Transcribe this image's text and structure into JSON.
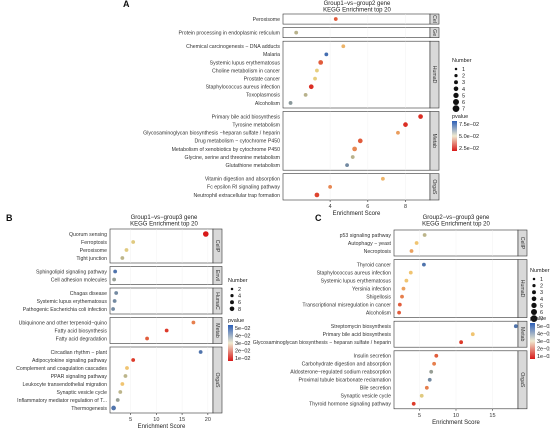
{
  "figure": {
    "panels": [
      {
        "label": "A",
        "title_lines": [
          "Group1−vs−group2 gene",
          "KEGG Enrichment top 20"
        ],
        "xlabel": "Enrichment Score",
        "xticks": [
          4,
          6,
          8
        ],
        "xlim": [
          1.5,
          9.3
        ],
        "groups": [
          {
            "strip": "Cel",
            "terms": [
              "Peroxisome"
            ]
          },
          {
            "strip": "Ge",
            "terms": [
              "Protein processing in endoplasmic reticulum"
            ]
          },
          {
            "strip": "HumaD",
            "terms": [
              "Chemical carcinogenesis − DNA adducts",
              "Malaria",
              "Systemic lupus erythematosus",
              "Choline metabolism in cancer",
              "Prostate cancer",
              "Staphylococcus aureus infection",
              "Toxoplasmosis",
              "Alcoholism"
            ]
          },
          {
            "strip": "Metab",
            "terms": [
              "Primary bile acid biosynthesis",
              "Tyrosine metabolism",
              "Glycosaminoglycan biosynthesis −heparan sulfate / heparin",
              "Drug metabolism − cytochrome P450",
              "Metabolism of xenobiotics by cytochrome P450",
              "Glycine, serine and threonine metabolism",
              "Glutathione metabolism"
            ]
          },
          {
            "strip": "OrgaS",
            "terms": [
              "Vitamin digestion and absorption",
              "Fc epsilon RI signaling pathway",
              "Neutrophil extracellular trap formation"
            ]
          }
        ]
      },
      {
        "label": "B",
        "title_lines": [
          "Group1−vs−group3 gene",
          "KEGG Enrichment top 20"
        ],
        "xlabel": "Enrichment Score",
        "xticks": [
          5,
          10,
          15,
          20
        ],
        "xlim": [
          1,
          21
        ],
        "groups": [
          {
            "strip": "CellP",
            "terms": [
              "Quorum sensing",
              "Ferroptosis",
              "Peroxisome",
              "Tight junction"
            ]
          },
          {
            "strip": "Envil",
            "terms": [
              "Sphingolipid signaling pathway",
              "Cell adhesion molecules"
            ]
          },
          {
            "strip": "HumaC",
            "terms": [
              "Chagas disease",
              "Systemic lupus erythematosus",
              "Pathogenic Escherichia coli infection"
            ]
          },
          {
            "strip": "Metab",
            "terms": [
              "Ubiquinone and other terpenoid−quino",
              "Fatty acid biosynthesis",
              "Fatty acid degradation"
            ]
          },
          {
            "strip": "OrgaS",
            "terms": [
              "Circadian rhythm − plant",
              "Adipocytokine signaling pathway",
              "Complement and coagulation cascades",
              "PPAR signaling pathway",
              "Leukocyte transendothelial migration",
              "Synaptic vesicle cycle",
              "Inflammatory mediator regulation of T...",
              "Thermogenesis"
            ]
          }
        ]
      },
      {
        "label": "C",
        "title_lines": [
          "Group2−vs−group3 gene",
          "KEGG Enrichment top 20"
        ],
        "xlabel": "Enrichment Score",
        "xticks": [
          5,
          10,
          15
        ],
        "xlim": [
          1.5,
          18.5
        ],
        "groups": [
          {
            "strip": "CellP",
            "terms": [
              "p53 signaling pathway",
              "Autophagy − yeast",
              "Necroptosis"
            ]
          },
          {
            "strip": "HumaD",
            "terms": [
              "Thyroid cancer",
              "Staphylococcus aureus infection",
              "Systemic lupus erythematosus",
              "Yersinia infection",
              "Shigellosis",
              "Transcriptional misregulation in cancer",
              "Alcoholism"
            ]
          },
          {
            "strip": "Metab",
            "terms": [
              "Streptomycin biosynthesis",
              "Primary bile acid biosynthesis",
              "Glycosaminoglycan biosynthesis − heparan sulfate / heparin"
            ]
          },
          {
            "strip": "OrgaS",
            "terms": [
              "Insulin secretion",
              "Carbohydrate digestion and absorption",
              "Aldosterone−regulated sodium reabsorption",
              "Proximal tubule bicarbonate reclamation",
              "Bile secretion",
              "Synaptic vesicle cycle",
              "Thyroid hormone signaling pathway"
            ]
          }
        ]
      }
    ],
    "legends": {
      "A": {
        "number_title": "Number",
        "number_labels": [
          "1",
          "2",
          "3",
          "4",
          "5",
          "6",
          "7"
        ],
        "pvalue_title": "pvalue",
        "pvalue_labels": [
          "7.5e−02",
          "5.0e−02",
          "2.5e−02"
        ]
      },
      "B": {
        "number_title": "Number",
        "number_labels": [
          "2",
          "4",
          "6",
          "8"
        ],
        "pvalue_title": "pvalue",
        "pvalue_labels": [
          "5e−02",
          "4e−02",
          "3e−02",
          "2e−02",
          "1e−02"
        ]
      },
      "C": {
        "number_title": "Number",
        "number_labels": [
          "1",
          "2",
          "3",
          "4",
          "5",
          "6",
          "7"
        ],
        "pvalue_title": "pvalue",
        "pvalue_labels": [
          "5e−02",
          "4e−02",
          "3e−02",
          "2e−02",
          "1e−02"
        ]
      }
    }
  },
  "chart_data": [
    {
      "type": "scatter",
      "panel": "A",
      "title": "Group1−vs−group2 gene KEGG Enrichment top 20",
      "xlabel": "Enrichment Score",
      "xlim": [
        1.5,
        9.3
      ],
      "points": [
        {
          "term": "Peroxisome",
          "x": 4.3,
          "number": 2,
          "pvalue": 0.02
        },
        {
          "term": "Protein processing in endoplasmic reticulum",
          "x": 2.2,
          "number": 2,
          "pvalue": 0.06
        },
        {
          "term": "Chemical carcinogenesis − DNA adducts",
          "x": 4.7,
          "number": 2,
          "pvalue": 0.04
        },
        {
          "term": "Malaria",
          "x": 3.8,
          "number": 2,
          "pvalue": 0.085
        },
        {
          "term": "Systemic lupus erythematosus",
          "x": 3.5,
          "number": 3,
          "pvalue": 0.02
        },
        {
          "term": "Choline metabolism in cancer",
          "x": 3.3,
          "number": 2,
          "pvalue": 0.05
        },
        {
          "term": "Prostate cancer",
          "x": 3.2,
          "number": 2,
          "pvalue": 0.05
        },
        {
          "term": "Staphylococcus aureus infection",
          "x": 3.0,
          "number": 3,
          "pvalue": 0.01
        },
        {
          "term": "Toxoplasmosis",
          "x": 2.7,
          "number": 2,
          "pvalue": 0.06
        },
        {
          "term": "Alcoholism",
          "x": 1.9,
          "number": 2,
          "pvalue": 0.07
        },
        {
          "term": "Primary bile acid biosynthesis",
          "x": 8.8,
          "number": 3,
          "pvalue": 0.01
        },
        {
          "term": "Tyrosine metabolism",
          "x": 8.0,
          "number": 3,
          "pvalue": 0.01
        },
        {
          "term": "Glycosaminoglycan biosynthesis −heparan sulfate / heparin",
          "x": 7.6,
          "number": 2,
          "pvalue": 0.035
        },
        {
          "term": "Drug metabolism − cytochrome P450",
          "x": 5.6,
          "number": 3,
          "pvalue": 0.02
        },
        {
          "term": "Metabolism of xenobiotics by cytochrome P450",
          "x": 5.3,
          "number": 3,
          "pvalue": 0.03
        },
        {
          "term": "Glycine, serine and threonine metabolism",
          "x": 5.2,
          "number": 2,
          "pvalue": 0.06
        },
        {
          "term": "Glutathione metabolism",
          "x": 4.9,
          "number": 2,
          "pvalue": 0.075
        },
        {
          "term": "Vitamin digestion and absorption",
          "x": 6.8,
          "number": 2,
          "pvalue": 0.04
        },
        {
          "term": "Fc epsilon RI signaling pathway",
          "x": 4.0,
          "number": 2,
          "pvalue": 0.03
        },
        {
          "term": "Neutrophil extracellular trap formation",
          "x": 3.3,
          "number": 3,
          "pvalue": 0.015
        }
      ]
    },
    {
      "type": "scatter",
      "panel": "B",
      "title": "Group1−vs−group3 gene KEGG Enrichment top 20",
      "xlabel": "Enrichment Score",
      "xlim": [
        1,
        21
      ],
      "points": [
        {
          "term": "Quorum sensing",
          "x": 19.6,
          "number": 4,
          "pvalue": 0.003
        },
        {
          "term": "Ferroptosis",
          "x": 5.5,
          "number": 2,
          "pvalue": 0.035
        },
        {
          "term": "Peroxisome",
          "x": 4.2,
          "number": 2,
          "pvalue": 0.035
        },
        {
          "term": "Tight junction",
          "x": 3.4,
          "number": 2,
          "pvalue": 0.04
        },
        {
          "term": "Sphingolipid signaling pathway",
          "x": 2.0,
          "number": 2,
          "pvalue": 0.055
        },
        {
          "term": "Cell adhesion molecules",
          "x": 1.8,
          "number": 2,
          "pvalue": 0.045
        },
        {
          "term": "Chagas disease",
          "x": 2.2,
          "number": 2,
          "pvalue": 0.05
        },
        {
          "term": "Systemic lupus erythematosus",
          "x": 1.9,
          "number": 2,
          "pvalue": 0.05
        },
        {
          "term": "Pathogenic Escherichia coli infection",
          "x": 1.6,
          "number": 2,
          "pvalue": 0.05
        },
        {
          "term": "Ubiquinone and other terpenoid−quino",
          "x": 17.2,
          "number": 2,
          "pvalue": 0.02
        },
        {
          "term": "Fatty acid biosynthesis",
          "x": 12.0,
          "number": 2,
          "pvalue": 0.01
        },
        {
          "term": "Fatty acid degradation",
          "x": 8.2,
          "number": 2,
          "pvalue": 0.015
        },
        {
          "term": "Circadian rhythm − plant",
          "x": 18.6,
          "number": 2,
          "pvalue": 0.055
        },
        {
          "term": "Adipocytokine signaling pathway",
          "x": 5.5,
          "number": 2,
          "pvalue": 0.01
        },
        {
          "term": "Complement and coagulation cascades",
          "x": 4.3,
          "number": 2,
          "pvalue": 0.03
        },
        {
          "term": "PPAR signaling pathway",
          "x": 4.0,
          "number": 2,
          "pvalue": 0.04
        },
        {
          "term": "Leukocyte transendothelial migration",
          "x": 3.4,
          "number": 2,
          "pvalue": 0.03
        },
        {
          "term": "Synaptic vesicle cycle",
          "x": 3.0,
          "number": 2,
          "pvalue": 0.04
        },
        {
          "term": "Inflammatory mediator regulation of T...",
          "x": 2.5,
          "number": 2,
          "pvalue": 0.045
        },
        {
          "term": "Thermogenesis",
          "x": 1.7,
          "number": 3,
          "pvalue": 0.055
        }
      ]
    },
    {
      "type": "scatter",
      "panel": "C",
      "title": "Group2−vs−group3 gene KEGG Enrichment top 20",
      "xlabel": "Enrichment Score",
      "xlim": [
        1.5,
        18.5
      ],
      "points": [
        {
          "term": "p53 signaling pathway",
          "x": 5.7,
          "number": 2,
          "pvalue": 0.04
        },
        {
          "term": "Autophagy − yeast",
          "x": 4.6,
          "number": 2,
          "pvalue": 0.03
        },
        {
          "term": "Necroptosis",
          "x": 3.9,
          "number": 2,
          "pvalue": 0.025
        },
        {
          "term": "Thyroid cancer",
          "x": 5.6,
          "number": 2,
          "pvalue": 0.055
        },
        {
          "term": "Staphylococcus aureus infection",
          "x": 3.8,
          "number": 2,
          "pvalue": 0.03
        },
        {
          "term": "Systemic lupus erythematosus",
          "x": 3.2,
          "number": 2,
          "pvalue": 0.03
        },
        {
          "term": "Yersinia infection",
          "x": 2.8,
          "number": 2,
          "pvalue": 0.025
        },
        {
          "term": "Shigellosis",
          "x": 2.6,
          "number": 2,
          "pvalue": 0.02
        },
        {
          "term": "Transcriptional misregulation in cancer",
          "x": 2.3,
          "number": 2,
          "pvalue": 0.015
        },
        {
          "term": "Alcoholism",
          "x": 2.2,
          "number": 2,
          "pvalue": 0.015
        },
        {
          "term": "Streptomycin biosynthesis",
          "x": 18.2,
          "number": 2,
          "pvalue": 0.055
        },
        {
          "term": "Primary bile acid biosynthesis",
          "x": 12.3,
          "number": 2,
          "pvalue": 0.03
        },
        {
          "term": "Glycosaminoglycan biosynthesis − heparan sulfate / heparin",
          "x": 10.7,
          "number": 2,
          "pvalue": 0.01
        },
        {
          "term": "Insulin secretion",
          "x": 7.3,
          "number": 2,
          "pvalue": 0.015
        },
        {
          "term": "Carbohydrate digestion and absorption",
          "x": 7.0,
          "number": 2,
          "pvalue": 0.02
        },
        {
          "term": "Aldosterone−regulated sodium reabsorption",
          "x": 6.6,
          "number": 2,
          "pvalue": 0.045
        },
        {
          "term": "Proximal tubule bicarbonate reclamation",
          "x": 6.4,
          "number": 2,
          "pvalue": 0.05
        },
        {
          "term": "Bile secretion",
          "x": 6.0,
          "number": 2,
          "pvalue": 0.02
        },
        {
          "term": "Synaptic vesicle cycle",
          "x": 5.3,
          "number": 2,
          "pvalue": 0.035
        },
        {
          "term": "Thyroid hormone signaling pathway",
          "x": 4.2,
          "number": 2,
          "pvalue": 0.01
        }
      ]
    }
  ]
}
